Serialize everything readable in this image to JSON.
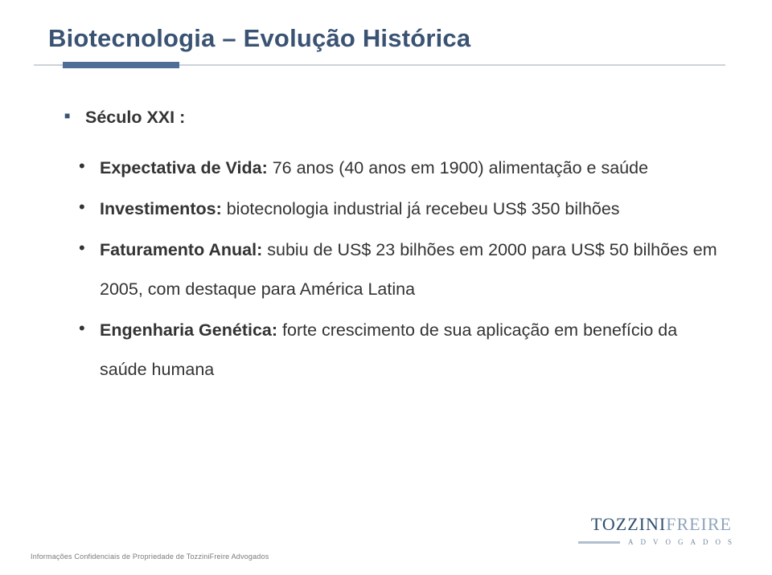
{
  "title": "Biotecnologia – Evolução Histórica",
  "bullet_lvl1": "Século XXI :",
  "items": [
    {
      "bold": "Expectativa de Vida:",
      "rest": " 76 anos (40 anos em 1900) alimentação e saúde"
    },
    {
      "bold": "Investimentos:",
      "rest": " biotecnologia industrial já recebeu US$ 350 bilhões"
    },
    {
      "bold": "Faturamento Anual:",
      "rest": " subiu de US$ 23 bilhões em 2000 para US$ 50 bilhões em 2005, com destaque para América Latina"
    },
    {
      "bold": "Engenharia Genética:",
      "rest": " forte crescimento de sua aplicação em benefício da saúde humana"
    }
  ],
  "footer": "Informações Confidenciais de Propriedade de TozziniFreire Advogados",
  "logo": {
    "main_a": "TOZZINI",
    "main_b": "FREIRE",
    "sub": "ADVOGADOS"
  },
  "colors": {
    "title": "#3a5373",
    "accent": "#4e6e97",
    "rule": "#cdd3d9",
    "text": "#333333",
    "footer": "#7a7a7a",
    "logo_dark": "#2f4e6e",
    "logo_light": "#8fa4bb"
  }
}
